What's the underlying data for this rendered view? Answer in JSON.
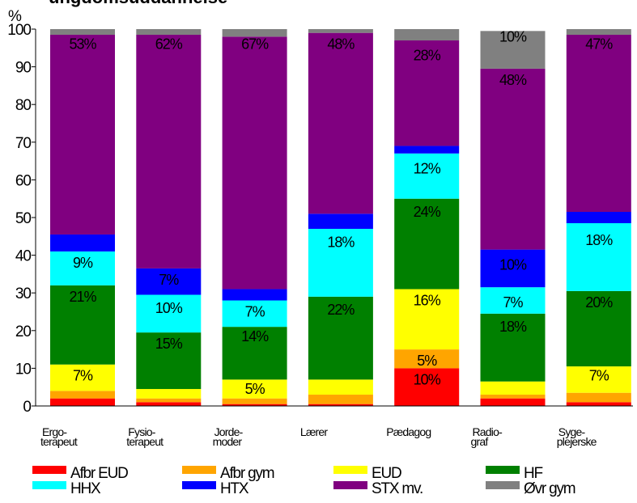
{
  "chart_data": {
    "type": "bar",
    "stacked": true,
    "title": "ungdomsuddannelse",
    "ylabel": "%",
    "ylim": [
      0,
      100
    ],
    "yticks": [
      0,
      10,
      20,
      30,
      40,
      50,
      60,
      70,
      80,
      90,
      100
    ],
    "grid": false,
    "legend_position": "bottom",
    "categories": [
      [
        "Ergo-",
        "terapeut"
      ],
      [
        "Fysio-",
        "terapeut"
      ],
      [
        "Jorde-",
        "moder"
      ],
      [
        "Lærer"
      ],
      [
        "Pædagog"
      ],
      [
        "Radio-",
        "graf"
      ],
      [
        "Syge-",
        "plejerske"
      ]
    ],
    "series": [
      {
        "name": "Afbr EUD",
        "color": "#ff0000",
        "values": [
          2,
          1,
          0.5,
          0.5,
          10,
          2,
          1
        ]
      },
      {
        "name": "Afbr gym",
        "color": "#ffa500",
        "values": [
          2,
          1,
          1.5,
          2.5,
          5,
          1,
          2.5
        ]
      },
      {
        "name": "EUD",
        "color": "#ffff00",
        "values": [
          7,
          2.5,
          5,
          4,
          16,
          3.5,
          7
        ]
      },
      {
        "name": "HF",
        "color": "#008000",
        "values": [
          21,
          15,
          14,
          22,
          24,
          18,
          20
        ]
      },
      {
        "name": "HHX",
        "color": "#00ffff",
        "values": [
          9,
          10,
          7,
          18,
          12,
          7,
          18
        ]
      },
      {
        "name": "HTX",
        "color": "#0000ff",
        "values": [
          4.5,
          7,
          3,
          4,
          2,
          10,
          3
        ]
      },
      {
        "name": "STX mv.",
        "color": "#800080",
        "values": [
          53,
          62,
          67,
          48,
          28,
          48,
          47
        ]
      },
      {
        "name": "Øvr gym",
        "color": "#808080",
        "values": [
          1.5,
          1.5,
          2,
          1,
          3,
          10,
          1.5
        ]
      }
    ],
    "data_labels": [
      {
        "text": "53%",
        "category": 0,
        "y": 96
      },
      {
        "text": "9%",
        "category": 0,
        "y": 38
      },
      {
        "text": "21%",
        "category": 0,
        "y": 29
      },
      {
        "text": "7%",
        "category": 0,
        "y": 8
      },
      {
        "text": "62%",
        "category": 1,
        "y": 96
      },
      {
        "text": "7%",
        "category": 1,
        "y": 33.5
      },
      {
        "text": "10%",
        "category": 1,
        "y": 26
      },
      {
        "text": "15%",
        "category": 1,
        "y": 16.5
      },
      {
        "text": "67%",
        "category": 2,
        "y": 96
      },
      {
        "text": "7%",
        "category": 2,
        "y": 25
      },
      {
        "text": "14%",
        "category": 2,
        "y": 18.5
      },
      {
        "text": "5%",
        "category": 2,
        "y": 4.5
      },
      {
        "text": "48%",
        "category": 3,
        "y": 96
      },
      {
        "text": "18%",
        "category": 3,
        "y": 43.5
      },
      {
        "text": "22%",
        "category": 3,
        "y": 25.5
      },
      {
        "text": "28%",
        "category": 4,
        "y": 93
      },
      {
        "text": "12%",
        "category": 4,
        "y": 63
      },
      {
        "text": "24%",
        "category": 4,
        "y": 51.5
      },
      {
        "text": "16%",
        "category": 4,
        "y": 28
      },
      {
        "text": "5%",
        "category": 4,
        "y": 12
      },
      {
        "text": "10%",
        "category": 4,
        "y": 7
      },
      {
        "text": "10%",
        "category": 5,
        "y": 98
      },
      {
        "text": "48%",
        "category": 5,
        "y": 86.5
      },
      {
        "text": "10%",
        "category": 5,
        "y": 37.5
      },
      {
        "text": "7%",
        "category": 5,
        "y": 27.5
      },
      {
        "text": "18%",
        "category": 5,
        "y": 21
      },
      {
        "text": "47%",
        "category": 6,
        "y": 96
      },
      {
        "text": "18%",
        "category": 6,
        "y": 44
      },
      {
        "text": "20%",
        "category": 6,
        "y": 27.5
      },
      {
        "text": "7%",
        "category": 6,
        "y": 8
      }
    ]
  }
}
